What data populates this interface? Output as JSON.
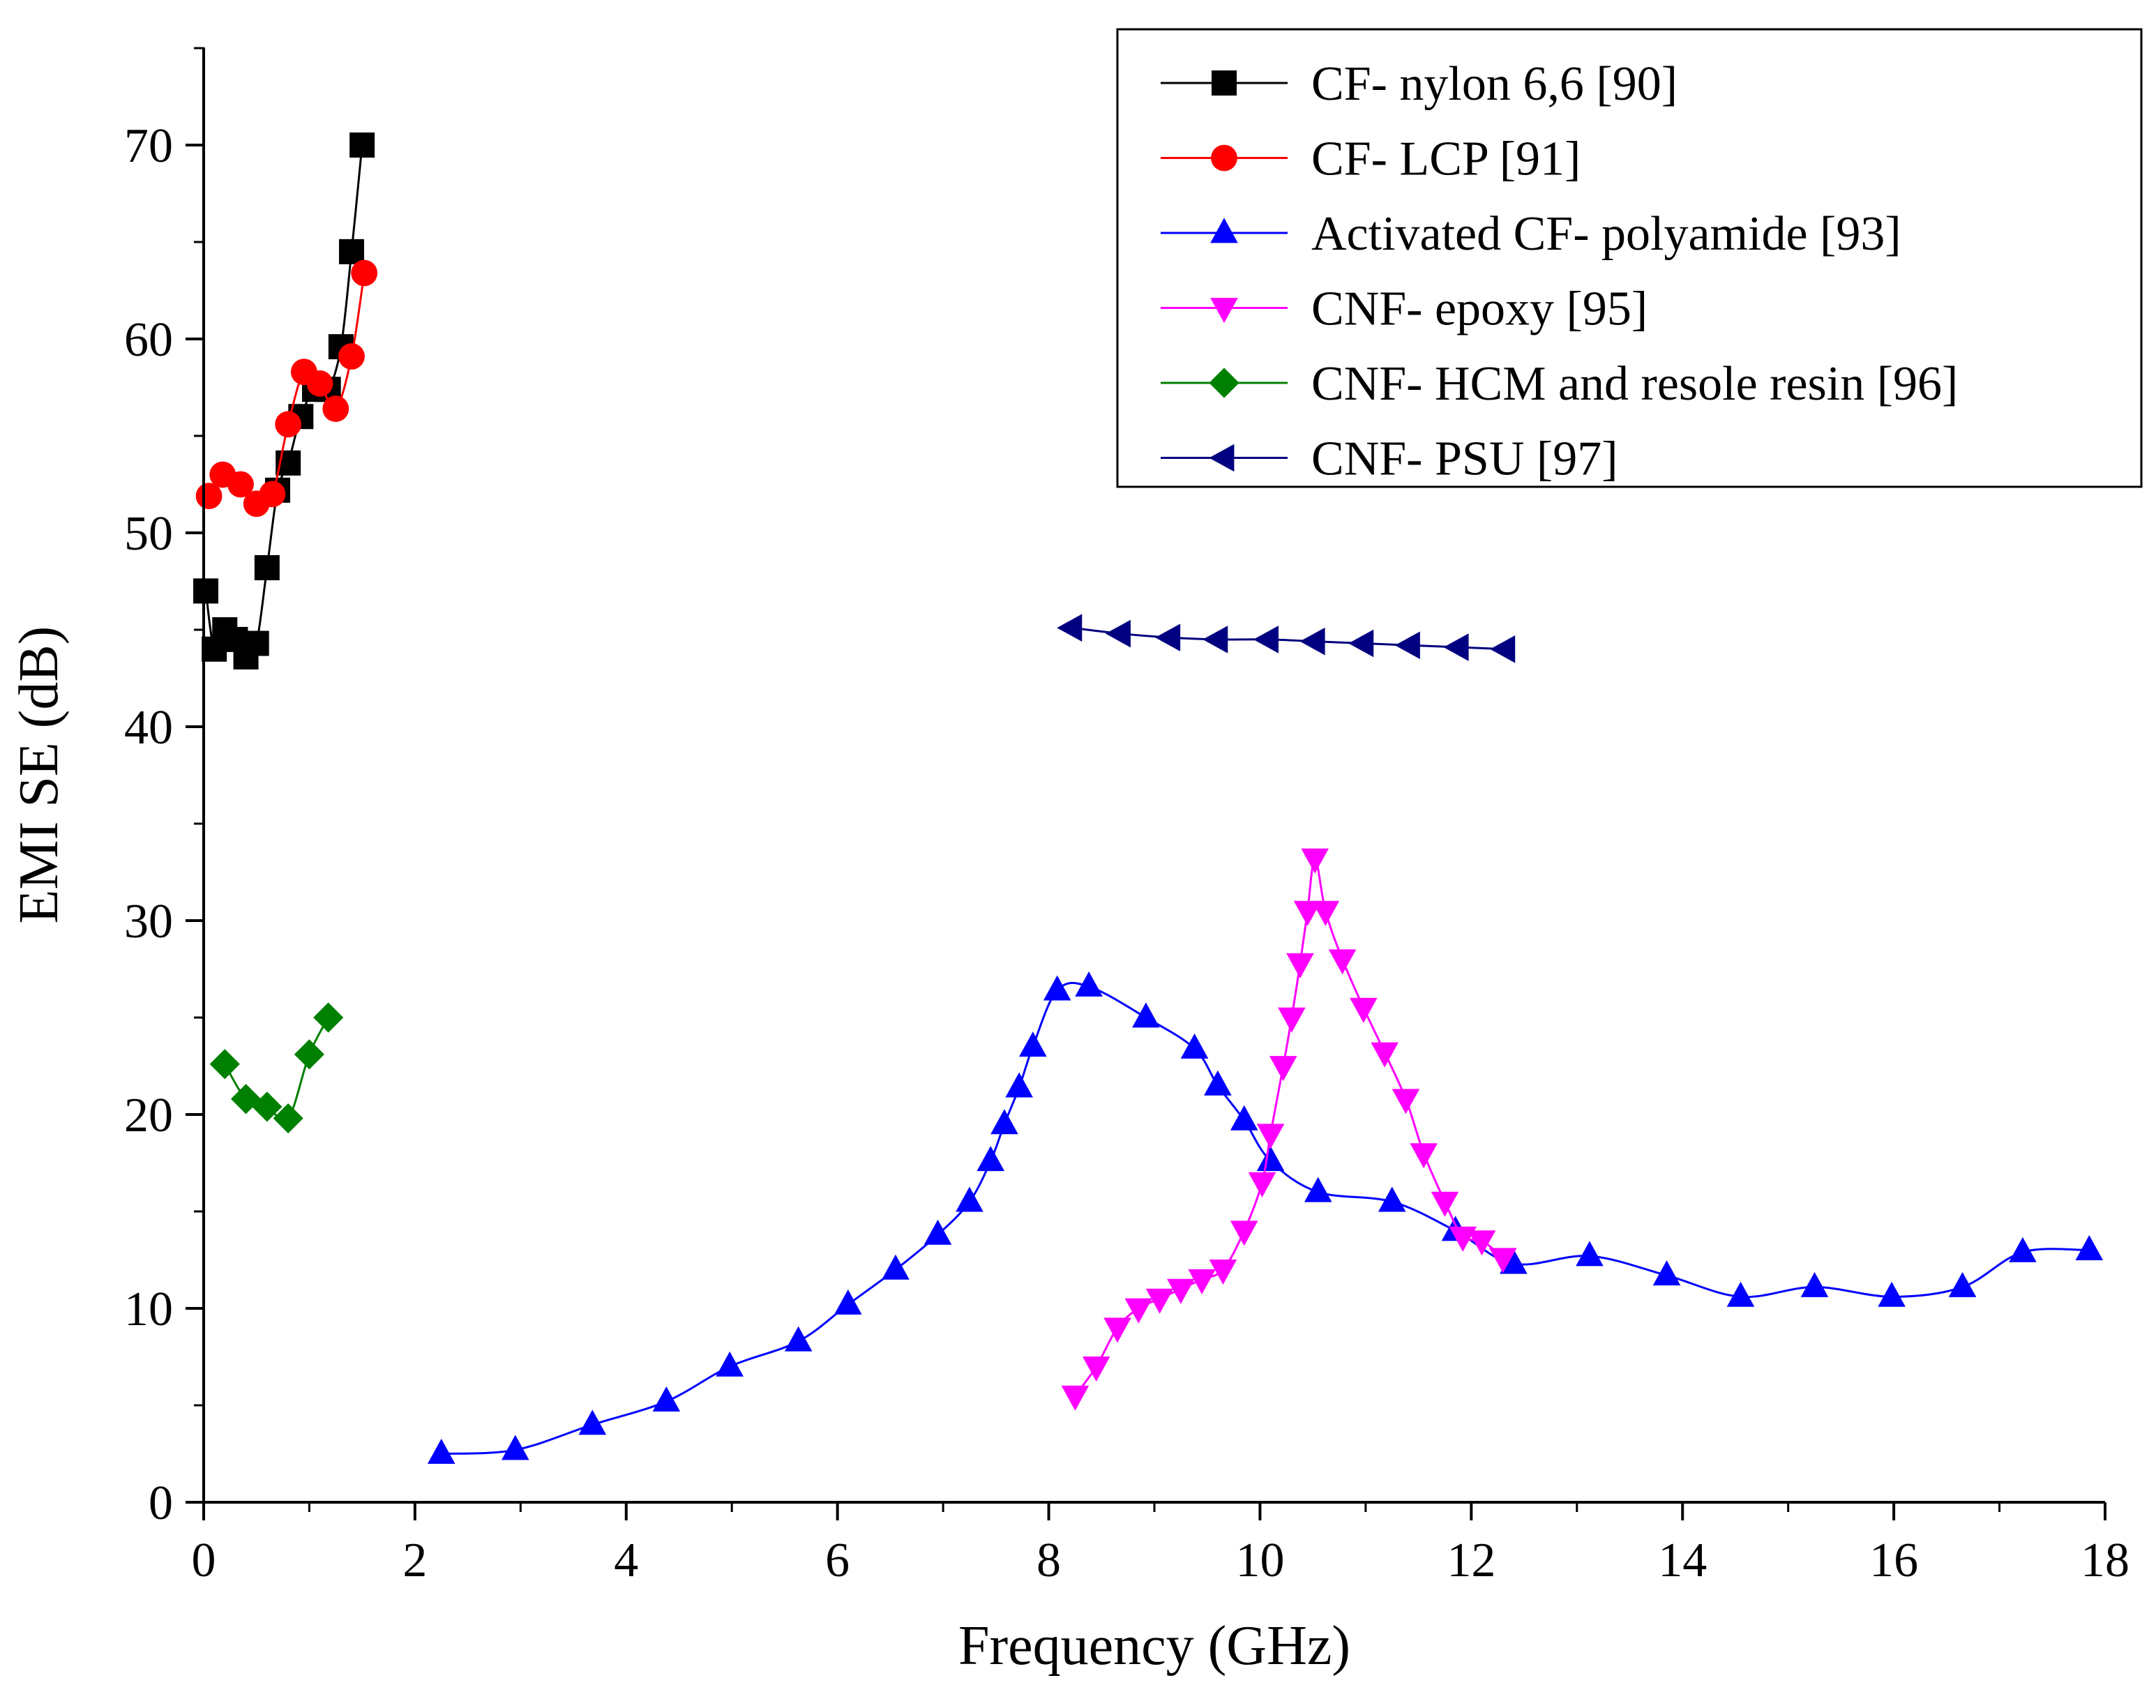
{
  "chart_data": {
    "type": "line",
    "title": "",
    "xlabel": "Frequency (GHz)",
    "ylabel": "EMI SE (dB)",
    "xlim": [
      0,
      18
    ],
    "ylim": [
      0,
      75
    ],
    "xticks": [
      "0",
      "2",
      "4",
      "6",
      "8",
      "10",
      "12",
      "14",
      "16",
      "18"
    ],
    "yticks": [
      "0",
      "10",
      "20",
      "30",
      "40",
      "50",
      "60",
      "70"
    ],
    "legend_position": "top-right",
    "series": [
      {
        "name": "CF- nylon 6,6 [90]",
        "color": "#000000",
        "marker": "square",
        "x": [
          0.02,
          0.1,
          0.2,
          0.3,
          0.4,
          0.5,
          0.6,
          0.7,
          0.8,
          0.92,
          1.05,
          1.18,
          1.3,
          1.4,
          1.5
        ],
        "y": [
          47,
          44,
          45,
          44.5,
          43.6,
          44.3,
          48.2,
          52.2,
          53.6,
          56,
          57.4,
          57.4,
          59.6,
          64.5,
          70
        ]
      },
      {
        "name": "CF- LCP [91]",
        "color": "#ff0000",
        "marker": "circle",
        "x": [
          0.05,
          0.18,
          0.35,
          0.5,
          0.65,
          0.8,
          0.95,
          1.1,
          1.25,
          1.4,
          1.52
        ],
        "y": [
          51.9,
          53,
          52.5,
          51.5,
          52,
          55.6,
          58.3,
          57.7,
          56.4,
          59.1,
          63.4
        ]
      },
      {
        "name": "Activated CF- polyamide [93]",
        "color": "#0000ff",
        "marker": "triangle-up",
        "x": [
          2.25,
          2.95,
          3.68,
          4.38,
          4.98,
          5.63,
          6.1,
          6.55,
          6.95,
          7.25,
          7.45,
          7.58,
          7.72,
          7.85,
          8.08,
          8.38,
          8.92,
          9.38,
          9.6,
          9.85,
          10.1,
          10.55,
          11.25,
          11.85,
          12.4,
          13.12,
          13.85,
          14.55,
          15.25,
          15.98,
          16.65,
          17.22,
          17.85
        ],
        "y": [
          2.5,
          2.7,
          4,
          5.2,
          7,
          8.3,
          10.2,
          12,
          13.8,
          15.5,
          17.6,
          19.5,
          21.4,
          23.5,
          26.4,
          26.6,
          25,
          23.4,
          21.5,
          19.7,
          17.6,
          16,
          15.5,
          14,
          12.3,
          12.7,
          11.7,
          10.6,
          11.1,
          10.6,
          11.1,
          12.9,
          13
        ]
      },
      {
        "name": "CNF- epoxy [95]",
        "color": "#ff00ff",
        "marker": "triangle-down",
        "x": [
          8.25,
          8.45,
          8.65,
          8.85,
          9.05,
          9.25,
          9.45,
          9.65,
          9.85,
          10.02,
          10.1,
          10.22,
          10.3,
          10.38,
          10.45,
          10.52,
          10.62,
          10.78,
          10.98,
          11.18,
          11.38,
          11.55,
          11.75,
          11.92,
          12.1,
          12.3
        ],
        "y": [
          5.5,
          7,
          9,
          10,
          10.5,
          11,
          11.5,
          12,
          14,
          16.5,
          19,
          22.5,
          25,
          27.8,
          30.5,
          33.2,
          30.5,
          28,
          25.5,
          23.2,
          20.8,
          18,
          15.5,
          13.7,
          13.5,
          12.6
        ]
      },
      {
        "name": "CNF- HCM and resole resin [96]",
        "color": "#008000",
        "marker": "diamond",
        "x": [
          0.2,
          0.4,
          0.6,
          0.8,
          1.0,
          1.18
        ],
        "y": [
          22.6,
          20.8,
          20.4,
          19.8,
          23.1,
          25
        ]
      },
      {
        "name": "CNF- PSU [97]",
        "color": "#000080",
        "marker": "triangle-left",
        "x": [
          8.22,
          8.68,
          9.15,
          9.6,
          10.08,
          10.52,
          10.98,
          11.42,
          11.88,
          12.32
        ],
        "y": [
          45.1,
          44.8,
          44.6,
          44.5,
          44.5,
          44.4,
          44.3,
          44.2,
          44.1,
          44
        ]
      }
    ]
  }
}
